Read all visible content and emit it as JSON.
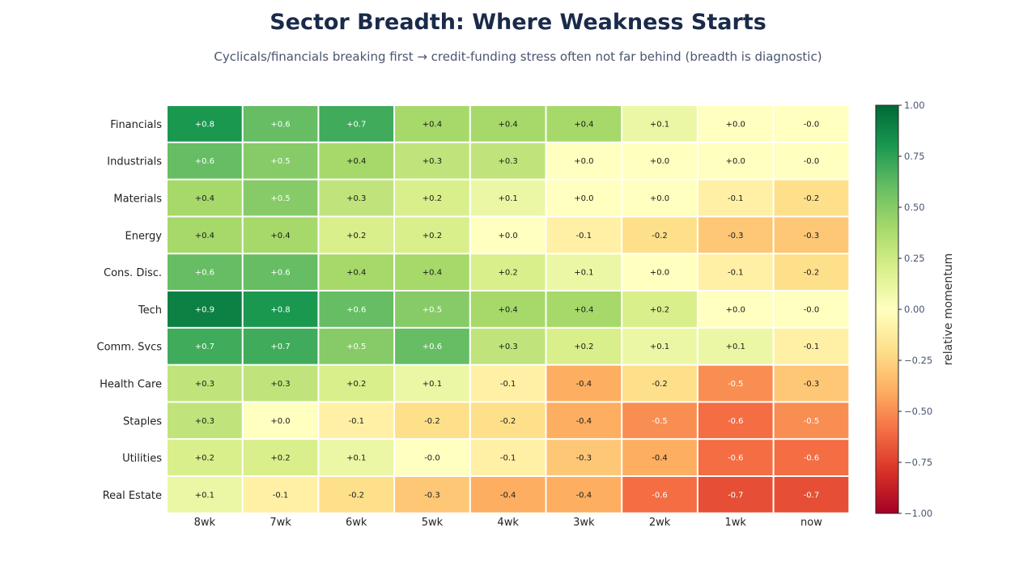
{
  "chart_data": {
    "type": "heatmap",
    "title": "Sector Breadth: Where Weakness Starts",
    "subtitle": "Cyclicals/financials breaking first → credit-funding stress often not far behind (breadth is diagnostic)",
    "rows": [
      "Financials",
      "Industrials",
      "Materials",
      "Energy",
      "Cons. Disc.",
      "Tech",
      "Comm. Svcs",
      "Health Care",
      "Staples",
      "Utilities",
      "Real Estate"
    ],
    "columns": [
      "8wk",
      "7wk",
      "6wk",
      "5wk",
      "4wk",
      "3wk",
      "2wk",
      "1wk",
      "now"
    ],
    "values": [
      [
        0.8,
        0.6,
        0.7,
        0.4,
        0.4,
        0.4,
        0.1,
        0.0,
        -0.0
      ],
      [
        0.6,
        0.5,
        0.4,
        0.3,
        0.3,
        0.0,
        0.0,
        0.0,
        -0.0
      ],
      [
        0.4,
        0.5,
        0.3,
        0.2,
        0.1,
        0.0,
        0.0,
        -0.1,
        -0.2
      ],
      [
        0.4,
        0.4,
        0.2,
        0.2,
        0.0,
        -0.1,
        -0.2,
        -0.3,
        -0.3
      ],
      [
        0.6,
        0.6,
        0.4,
        0.4,
        0.2,
        0.1,
        0.0,
        -0.1,
        -0.2
      ],
      [
        0.9,
        0.8,
        0.6,
        0.5,
        0.4,
        0.4,
        0.2,
        0.0,
        -0.0
      ],
      [
        0.7,
        0.7,
        0.5,
        0.6,
        0.3,
        0.2,
        0.1,
        0.1,
        -0.1
      ],
      [
        0.3,
        0.3,
        0.2,
        0.1,
        -0.1,
        -0.4,
        -0.2,
        -0.5,
        -0.3
      ],
      [
        0.3,
        0.0,
        -0.1,
        -0.2,
        -0.2,
        -0.4,
        -0.5,
        -0.6,
        -0.5
      ],
      [
        0.2,
        0.2,
        0.1,
        -0.0,
        -0.1,
        -0.3,
        -0.4,
        -0.6,
        -0.6
      ],
      [
        0.1,
        -0.1,
        -0.2,
        -0.3,
        -0.4,
        -0.4,
        -0.6,
        -0.7,
        -0.7
      ]
    ],
    "cell_labels": [
      [
        "+0.8",
        "+0.6",
        "+0.7",
        "+0.4",
        "+0.4",
        "+0.4",
        "+0.1",
        "+0.0",
        "-0.0"
      ],
      [
        "+0.6",
        "+0.5",
        "+0.4",
        "+0.3",
        "+0.3",
        "+0.0",
        "+0.0",
        "+0.0",
        "-0.0"
      ],
      [
        "+0.4",
        "+0.5",
        "+0.3",
        "+0.2",
        "+0.1",
        "+0.0",
        "+0.0",
        "-0.1",
        "-0.2"
      ],
      [
        "+0.4",
        "+0.4",
        "+0.2",
        "+0.2",
        "+0.0",
        "-0.1",
        "-0.2",
        "-0.3",
        "-0.3"
      ],
      [
        "+0.6",
        "+0.6",
        "+0.4",
        "+0.4",
        "+0.2",
        "+0.1",
        "+0.0",
        "-0.1",
        "-0.2"
      ],
      [
        "+0.9",
        "+0.8",
        "+0.6",
        "+0.5",
        "+0.4",
        "+0.4",
        "+0.2",
        "+0.0",
        "-0.0"
      ],
      [
        "+0.7",
        "+0.7",
        "+0.5",
        "+0.6",
        "+0.3",
        "+0.2",
        "+0.1",
        "+0.1",
        "-0.1"
      ],
      [
        "+0.3",
        "+0.3",
        "+0.2",
        "+0.1",
        "-0.1",
        "-0.4",
        "-0.2",
        "-0.5",
        "-0.3"
      ],
      [
        "+0.3",
        "+0.0",
        "-0.1",
        "-0.2",
        "-0.2",
        "-0.4",
        "-0.5",
        "-0.6",
        "-0.5"
      ],
      [
        "+0.2",
        "+0.2",
        "+0.1",
        "-0.0",
        "-0.1",
        "-0.3",
        "-0.4",
        "-0.6",
        "-0.6"
      ],
      [
        "+0.1",
        "-0.1",
        "-0.2",
        "-0.3",
        "-0.4",
        "-0.4",
        "-0.6",
        "-0.7",
        "-0.7"
      ]
    ],
    "colorbar": {
      "label": "relative momentum",
      "range": [
        -1.0,
        1.0
      ],
      "ticks": [
        "1.00",
        "0.75",
        "0.50",
        "0.25",
        "0.00",
        "−0.25",
        "−0.50",
        "−0.75",
        "−1.00"
      ],
      "colormap": "RdYlGn",
      "colors": [
        "#a50026",
        "#d73027",
        "#f46d43",
        "#fdae61",
        "#fee08b",
        "#ffffbf",
        "#d9ef8b",
        "#a6d96a",
        "#66bd63",
        "#1a9850",
        "#006837"
      ]
    },
    "grid": false,
    "legend": "right"
  }
}
